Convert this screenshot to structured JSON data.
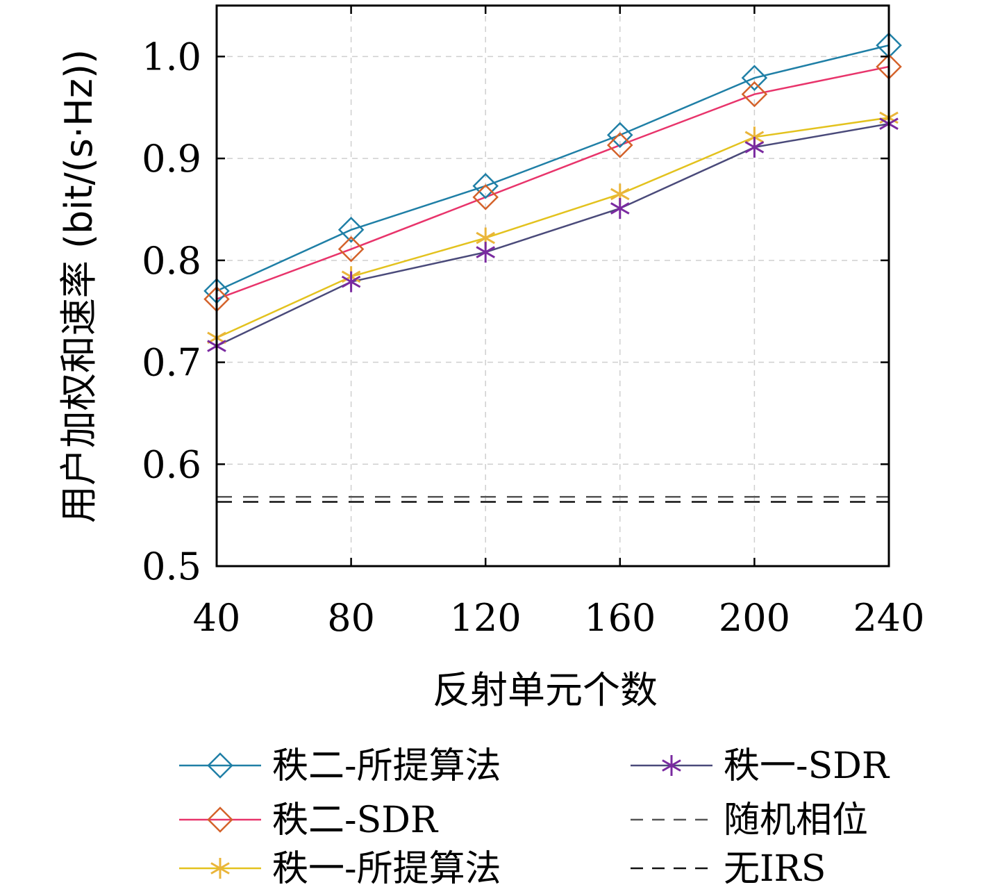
{
  "chart_data": {
    "type": "line",
    "title": "",
    "xlabel": "反射单元个数",
    "ylabel": "用户加权和速率 (bit/(s·Hz))",
    "x": [
      40,
      80,
      120,
      160,
      200,
      240
    ],
    "x_ticks": [
      "40",
      "80",
      "120",
      "160",
      "200",
      "240"
    ],
    "y_ticks": [
      "0.5",
      "0.6",
      "0.7",
      "0.8",
      "0.9",
      "1.0"
    ],
    "xlim": [
      40,
      240
    ],
    "ylim": [
      0.5,
      1.05
    ],
    "grid": true,
    "legend_position": "bottom",
    "series": [
      {
        "name": "秩二-所提算法",
        "values": [
          0.77,
          0.83,
          0.873,
          0.923,
          0.979,
          1.011
        ],
        "line_color": "#1f7fa6",
        "marker": "diamond",
        "marker_color": "#1f7fa6",
        "dash": "solid"
      },
      {
        "name": "秩二-SDR",
        "values": [
          0.762,
          0.811,
          0.862,
          0.913,
          0.963,
          0.99
        ],
        "line_color": "#e8346b",
        "marker": "diamond",
        "marker_color": "#d4622a",
        "dash": "solid"
      },
      {
        "name": "秩一-所提算法",
        "values": [
          0.724,
          0.784,
          0.822,
          0.865,
          0.921,
          0.94
        ],
        "line_color": "#e3c21e",
        "marker": "asterisk",
        "marker_color": "#eab53a",
        "dash": "solid"
      },
      {
        "name": "秩一-SDR",
        "values": [
          0.716,
          0.779,
          0.808,
          0.851,
          0.911,
          0.934
        ],
        "line_color": "#4a4a7a",
        "marker": "asterisk",
        "marker_color": "#7a2aa0",
        "dash": "solid"
      },
      {
        "name": "随机相位",
        "values": [
          0.568,
          0.568,
          0.568,
          0.568,
          0.568,
          0.568
        ],
        "line_color": "#555555",
        "marker": "none",
        "marker_color": "#555555",
        "dash": "dashed"
      },
      {
        "name": "无IRS",
        "values": [
          0.563,
          0.563,
          0.563,
          0.563,
          0.563,
          0.563
        ],
        "line_color": "#111111",
        "marker": "none",
        "marker_color": "#111111",
        "dash": "dashed"
      }
    ]
  }
}
